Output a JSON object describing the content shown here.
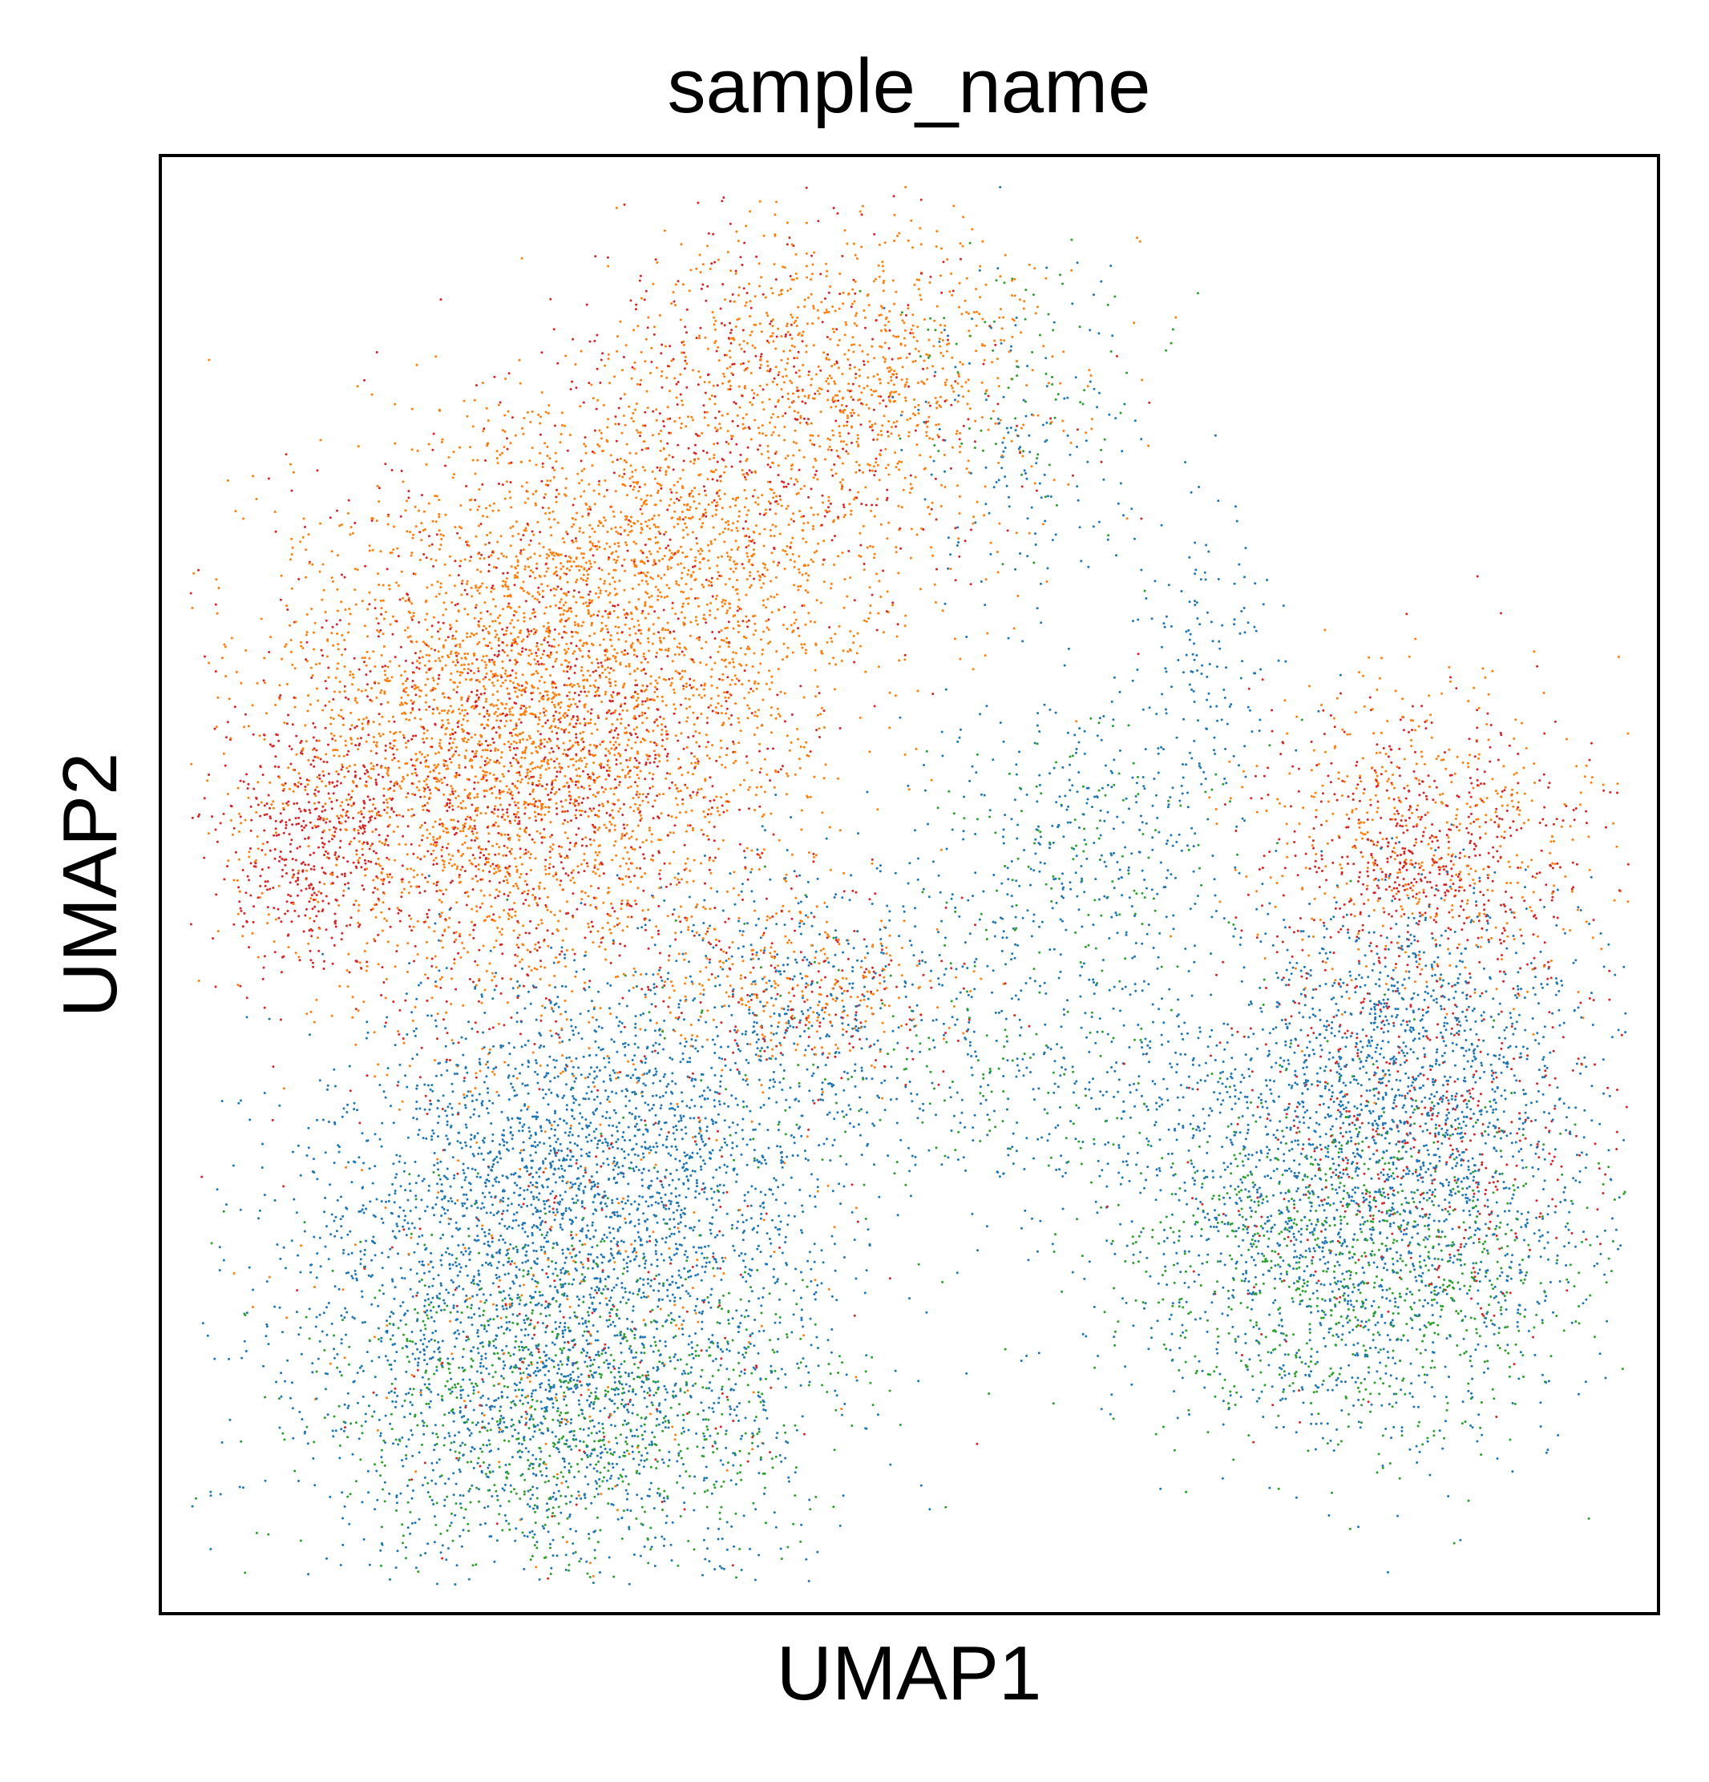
{
  "chart_data": {
    "type": "scatter",
    "title": "sample_name",
    "xlabel": "UMAP1",
    "ylabel": "UMAP2",
    "xticks": [],
    "yticks": [],
    "xlim": [
      0,
      100
    ],
    "ylim": [
      0,
      100
    ],
    "grid": false,
    "legend": "none",
    "marker_size_px": 3,
    "series": [
      {
        "color": "#1f77b4",
        "clusters": [
          {
            "cx": 26,
            "cy": 20,
            "sx": 9,
            "sy": 9,
            "n": 2600
          },
          {
            "cx": 30,
            "cy": 33,
            "sx": 8,
            "sy": 6,
            "n": 1300
          },
          {
            "cx": 45,
            "cy": 42,
            "sx": 7,
            "sy": 5,
            "n": 450
          },
          {
            "cx": 62,
            "cy": 53,
            "sx": 5,
            "sy": 6,
            "n": 350
          },
          {
            "cx": 70,
            "cy": 65,
            "sx": 2.5,
            "sy": 6,
            "n": 150
          },
          {
            "cx": 80,
            "cy": 29,
            "sx": 8,
            "sy": 8,
            "n": 2000
          },
          {
            "cx": 84,
            "cy": 40,
            "sx": 6,
            "sy": 5,
            "n": 600
          },
          {
            "cx": 58,
            "cy": 80,
            "sx": 4,
            "sy": 6,
            "n": 150
          },
          {
            "cx": 62,
            "cy": 36,
            "sx": 6,
            "sy": 4,
            "n": 200
          }
        ]
      },
      {
        "color": "#ff7f0e",
        "clusters": [
          {
            "cx": 24,
            "cy": 60,
            "sx": 9,
            "sy": 9,
            "n": 3000
          },
          {
            "cx": 34,
            "cy": 72,
            "sx": 8,
            "sy": 6,
            "n": 1200
          },
          {
            "cx": 46,
            "cy": 85,
            "sx": 7,
            "sy": 5,
            "n": 900
          },
          {
            "cx": 85,
            "cy": 53,
            "sx": 6,
            "sy": 6,
            "n": 500
          },
          {
            "cx": 43,
            "cy": 43,
            "sx": 5,
            "sy": 3,
            "n": 250
          },
          {
            "cx": 28,
            "cy": 22,
            "sx": 8,
            "sy": 9,
            "n": 200
          }
        ]
      },
      {
        "color": "#d62728",
        "clusters": [
          {
            "cx": 10,
            "cy": 53,
            "sx": 3,
            "sy": 4,
            "n": 400
          },
          {
            "cx": 24,
            "cy": 58,
            "sx": 9,
            "sy": 9,
            "n": 1400
          },
          {
            "cx": 40,
            "cy": 82,
            "sx": 8,
            "sy": 7,
            "n": 500
          },
          {
            "cx": 84,
            "cy": 52,
            "sx": 5,
            "sy": 5,
            "n": 600
          },
          {
            "cx": 84,
            "cy": 33,
            "sx": 7,
            "sy": 7,
            "n": 500
          },
          {
            "cx": 44,
            "cy": 42,
            "sx": 5,
            "sy": 3,
            "n": 150
          },
          {
            "cx": 28,
            "cy": 22,
            "sx": 8,
            "sy": 9,
            "n": 200
          }
        ]
      },
      {
        "color": "#2ca02c",
        "clusters": [
          {
            "cx": 27,
            "cy": 14,
            "sx": 9,
            "sy": 6,
            "n": 900
          },
          {
            "cx": 80,
            "cy": 24,
            "sx": 8,
            "sy": 6,
            "n": 900
          },
          {
            "cx": 52,
            "cy": 38,
            "sx": 10,
            "sy": 5,
            "n": 150
          },
          {
            "cx": 62,
            "cy": 52,
            "sx": 6,
            "sy": 6,
            "n": 120
          },
          {
            "cx": 58,
            "cy": 85,
            "sx": 5,
            "sy": 5,
            "n": 80
          }
        ]
      }
    ]
  }
}
